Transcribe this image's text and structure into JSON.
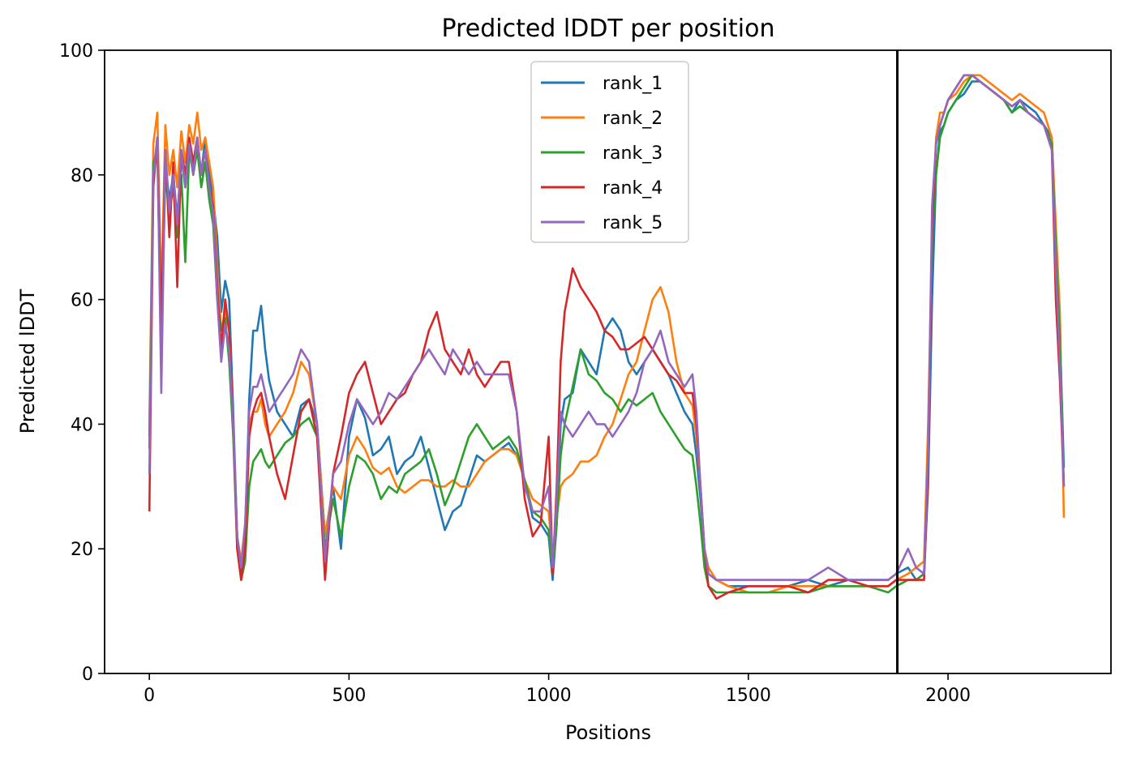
{
  "chart_data": {
    "type": "line",
    "title": "Predicted lDDT per position",
    "xlabel": "Positions",
    "ylabel": "Predicted lDDT",
    "xlim": [
      -112,
      2408
    ],
    "ylim": [
      0,
      100
    ],
    "xticks": [
      0,
      500,
      1000,
      1500,
      2000
    ],
    "yticks": [
      0,
      20,
      40,
      60,
      80,
      100
    ],
    "grid": false,
    "legend_position": "top-center",
    "vline_x": 1873,
    "series": [
      {
        "name": "rank_1",
        "color": "#1f77b4",
        "x": [
          0,
          10,
          20,
          30,
          40,
          50,
          60,
          70,
          80,
          90,
          100,
          110,
          120,
          130,
          140,
          150,
          160,
          170,
          180,
          190,
          200,
          210,
          220,
          230,
          240,
          250,
          260,
          270,
          280,
          290,
          300,
          320,
          340,
          360,
          380,
          400,
          420,
          440,
          460,
          480,
          500,
          520,
          540,
          560,
          580,
          600,
          620,
          640,
          660,
          680,
          700,
          720,
          740,
          760,
          780,
          800,
          820,
          840,
          860,
          880,
          900,
          920,
          940,
          960,
          980,
          1000,
          1010,
          1020,
          1030,
          1040,
          1060,
          1080,
          1100,
          1120,
          1140,
          1160,
          1180,
          1200,
          1220,
          1240,
          1260,
          1280,
          1300,
          1320,
          1340,
          1360,
          1370,
          1380,
          1390,
          1400,
          1420,
          1450,
          1500,
          1550,
          1600,
          1650,
          1700,
          1750,
          1800,
          1850,
          1870,
          1900,
          1920,
          1940,
          1950,
          1960,
          1970,
          1980,
          1990,
          2000,
          2020,
          2040,
          2060,
          2080,
          2100,
          2120,
          2140,
          2160,
          2180,
          2200,
          2220,
          2240,
          2260,
          2270,
          2280,
          2290
        ],
        "y": [
          38,
          80,
          84,
          55,
          82,
          76,
          80,
          73,
          83,
          78,
          85,
          81,
          84,
          80,
          86,
          80,
          76,
          70,
          58,
          63,
          60,
          42,
          22,
          16,
          22,
          44,
          55,
          55,
          59,
          52,
          47,
          42,
          40,
          38,
          43,
          44,
          40,
          22,
          30,
          20,
          38,
          44,
          41,
          35,
          36,
          38,
          32,
          34,
          35,
          38,
          33,
          28,
          23,
          26,
          27,
          31,
          35,
          34,
          35,
          36,
          37,
          35,
          31,
          25,
          24,
          22,
          15,
          24,
          40,
          44,
          45,
          52,
          50,
          48,
          55,
          57,
          55,
          50,
          48,
          50,
          52,
          50,
          48,
          45,
          42,
          40,
          35,
          28,
          20,
          16,
          15,
          14,
          14,
          14,
          14,
          15,
          14,
          15,
          15,
          15,
          16,
          17,
          15,
          16,
          30,
          60,
          80,
          87,
          88,
          90,
          92,
          93,
          95,
          95,
          94,
          93,
          92,
          90,
          92,
          91,
          90,
          88,
          86,
          70,
          55,
          33
        ]
      },
      {
        "name": "rank_2",
        "color": "#ff7f0e",
        "x": [
          0,
          10,
          20,
          30,
          40,
          50,
          60,
          70,
          80,
          90,
          100,
          110,
          120,
          130,
          140,
          150,
          160,
          170,
          180,
          190,
          200,
          210,
          220,
          230,
          240,
          250,
          260,
          270,
          280,
          290,
          300,
          320,
          340,
          360,
          380,
          400,
          420,
          440,
          460,
          480,
          500,
          520,
          540,
          560,
          580,
          600,
          620,
          640,
          660,
          680,
          700,
          720,
          740,
          760,
          780,
          800,
          820,
          840,
          860,
          880,
          900,
          920,
          940,
          960,
          980,
          1000,
          1010,
          1020,
          1030,
          1040,
          1060,
          1080,
          1100,
          1120,
          1140,
          1160,
          1180,
          1200,
          1220,
          1240,
          1260,
          1280,
          1300,
          1320,
          1340,
          1360,
          1370,
          1380,
          1390,
          1400,
          1420,
          1450,
          1500,
          1550,
          1600,
          1650,
          1700,
          1750,
          1800,
          1850,
          1870,
          1900,
          1920,
          1940,
          1950,
          1960,
          1970,
          1980,
          1990,
          2000,
          2020,
          2040,
          2060,
          2080,
          2100,
          2120,
          2140,
          2160,
          2180,
          2200,
          2220,
          2240,
          2260,
          2270,
          2280,
          2290
        ],
        "y": [
          40,
          85,
          90,
          60,
          88,
          80,
          84,
          78,
          87,
          82,
          88,
          85,
          90,
          84,
          86,
          82,
          78,
          65,
          55,
          58,
          55,
          40,
          22,
          18,
          24,
          40,
          42,
          42,
          44,
          40,
          38,
          40,
          42,
          45,
          50,
          48,
          40,
          22,
          30,
          28,
          35,
          38,
          36,
          33,
          32,
          33,
          30,
          29,
          30,
          31,
          31,
          30,
          30,
          31,
          30,
          30,
          32,
          34,
          35,
          36,
          36,
          35,
          31,
          28,
          27,
          26,
          18,
          25,
          30,
          31,
          32,
          34,
          34,
          35,
          38,
          40,
          44,
          48,
          50,
          55,
          60,
          62,
          58,
          50,
          45,
          43,
          38,
          30,
          20,
          17,
          15,
          14,
          13,
          13,
          14,
          14,
          14,
          14,
          14,
          14,
          15,
          16,
          17,
          18,
          40,
          70,
          86,
          90,
          90,
          92,
          93,
          95,
          96,
          96,
          95,
          94,
          93,
          92,
          93,
          92,
          91,
          90,
          86,
          72,
          58,
          25
        ]
      },
      {
        "name": "rank_3",
        "color": "#2ca02c",
        "x": [
          0,
          10,
          20,
          30,
          40,
          50,
          60,
          70,
          80,
          90,
          100,
          110,
          120,
          130,
          140,
          150,
          160,
          170,
          180,
          190,
          200,
          210,
          220,
          230,
          240,
          250,
          260,
          270,
          280,
          290,
          300,
          320,
          340,
          360,
          380,
          400,
          420,
          440,
          460,
          480,
          500,
          520,
          540,
          560,
          580,
          600,
          620,
          640,
          660,
          680,
          700,
          720,
          740,
          760,
          780,
          800,
          820,
          840,
          860,
          880,
          900,
          920,
          940,
          960,
          980,
          1000,
          1010,
          1020,
          1030,
          1040,
          1060,
          1080,
          1100,
          1120,
          1140,
          1160,
          1180,
          1200,
          1220,
          1240,
          1260,
          1280,
          1300,
          1320,
          1340,
          1360,
          1370,
          1380,
          1390,
          1400,
          1420,
          1450,
          1500,
          1550,
          1600,
          1650,
          1700,
          1750,
          1800,
          1850,
          1870,
          1900,
          1920,
          1940,
          1950,
          1960,
          1970,
          1980,
          1990,
          2000,
          2020,
          2040,
          2060,
          2080,
          2100,
          2120,
          2140,
          2160,
          2180,
          2200,
          2220,
          2240,
          2260,
          2270,
          2280,
          2290
        ],
        "y": [
          36,
          82,
          84,
          52,
          80,
          74,
          78,
          70,
          80,
          66,
          84,
          80,
          84,
          78,
          82,
          76,
          72,
          60,
          55,
          57,
          50,
          38,
          20,
          15,
          18,
          30,
          34,
          35,
          36,
          34,
          33,
          35,
          37,
          38,
          40,
          41,
          38,
          20,
          28,
          22,
          30,
          35,
          34,
          32,
          28,
          30,
          29,
          32,
          33,
          34,
          36,
          32,
          27,
          30,
          34,
          38,
          40,
          38,
          36,
          37,
          38,
          36,
          31,
          26,
          25,
          23,
          16,
          24,
          35,
          40,
          46,
          52,
          48,
          47,
          45,
          44,
          42,
          44,
          43,
          44,
          45,
          42,
          40,
          38,
          36,
          35,
          30,
          24,
          17,
          14,
          13,
          13,
          13,
          13,
          13,
          13,
          14,
          14,
          14,
          13,
          14,
          15,
          15,
          16,
          35,
          70,
          80,
          86,
          88,
          90,
          92,
          94,
          96,
          95,
          94,
          93,
          92,
          90,
          91,
          90,
          89,
          88,
          85,
          68,
          54,
          30
        ]
      },
      {
        "name": "rank_4",
        "color": "#d62728",
        "x": [
          0,
          10,
          20,
          30,
          40,
          50,
          60,
          70,
          80,
          90,
          100,
          110,
          120,
          130,
          140,
          150,
          160,
          170,
          180,
          190,
          200,
          210,
          220,
          230,
          240,
          250,
          260,
          270,
          280,
          290,
          300,
          320,
          340,
          360,
          380,
          400,
          420,
          440,
          460,
          480,
          500,
          520,
          540,
          560,
          580,
          600,
          620,
          640,
          660,
          680,
          700,
          720,
          740,
          760,
          780,
          800,
          820,
          840,
          860,
          880,
          900,
          920,
          940,
          960,
          980,
          1000,
          1010,
          1020,
          1030,
          1040,
          1060,
          1080,
          1100,
          1120,
          1140,
          1160,
          1180,
          1200,
          1220,
          1240,
          1260,
          1280,
          1300,
          1320,
          1340,
          1360,
          1370,
          1380,
          1390,
          1400,
          1420,
          1450,
          1500,
          1550,
          1600,
          1650,
          1700,
          1750,
          1800,
          1850,
          1870,
          1900,
          1920,
          1940,
          1950,
          1960,
          1970,
          1980,
          1990,
          2000,
          2020,
          2040,
          2060,
          2080,
          2100,
          2120,
          2140,
          2160,
          2180,
          2200,
          2220,
          2240,
          2260,
          2270,
          2280,
          2290
        ],
        "y": [
          26,
          78,
          86,
          56,
          84,
          70,
          82,
          62,
          84,
          80,
          86,
          82,
          86,
          80,
          84,
          78,
          75,
          62,
          52,
          60,
          55,
          40,
          20,
          15,
          20,
          38,
          42,
          44,
          45,
          42,
          38,
          32,
          28,
          35,
          42,
          44,
          38,
          15,
          32,
          38,
          45,
          48,
          50,
          45,
          40,
          42,
          44,
          45,
          48,
          50,
          55,
          58,
          52,
          50,
          48,
          52,
          48,
          46,
          48,
          50,
          50,
          42,
          28,
          22,
          24,
          38,
          16,
          30,
          50,
          58,
          65,
          62,
          60,
          58,
          55,
          54,
          52,
          52,
          53,
          54,
          52,
          50,
          48,
          47,
          45,
          45,
          40,
          30,
          20,
          14,
          12,
          13,
          14,
          14,
          14,
          13,
          15,
          15,
          14,
          14,
          15,
          15,
          15,
          15,
          32,
          72,
          85,
          88,
          90,
          92,
          94,
          96,
          96,
          95,
          94,
          93,
          92,
          91,
          92,
          90,
          89,
          88,
          84,
          60,
          47,
          30
        ]
      },
      {
        "name": "rank_5",
        "color": "#9467bd",
        "x": [
          0,
          10,
          20,
          30,
          40,
          50,
          60,
          70,
          80,
          90,
          100,
          110,
          120,
          130,
          140,
          150,
          160,
          170,
          180,
          190,
          200,
          210,
          220,
          230,
          240,
          250,
          260,
          270,
          280,
          290,
          300,
          320,
          340,
          360,
          380,
          400,
          420,
          440,
          460,
          480,
          500,
          520,
          540,
          560,
          580,
          600,
          620,
          640,
          660,
          680,
          700,
          720,
          740,
          760,
          780,
          800,
          820,
          840,
          860,
          880,
          900,
          920,
          940,
          960,
          980,
          1000,
          1010,
          1020,
          1030,
          1040,
          1060,
          1080,
          1100,
          1120,
          1140,
          1160,
          1180,
          1200,
          1220,
          1240,
          1260,
          1280,
          1300,
          1320,
          1340,
          1360,
          1370,
          1380,
          1390,
          1400,
          1420,
          1450,
          1500,
          1550,
          1600,
          1650,
          1700,
          1750,
          1800,
          1850,
          1870,
          1900,
          1920,
          1940,
          1950,
          1960,
          1970,
          1980,
          1990,
          2000,
          2020,
          2040,
          2060,
          2080,
          2100,
          2120,
          2140,
          2160,
          2180,
          2200,
          2220,
          2240,
          2260,
          2270,
          2280,
          2290
        ],
        "y": [
          32,
          80,
          86,
          45,
          84,
          74,
          80,
          72,
          84,
          78,
          85,
          80,
          86,
          80,
          84,
          78,
          74,
          60,
          50,
          56,
          52,
          40,
          22,
          17,
          24,
          42,
          46,
          46,
          48,
          45,
          42,
          44,
          46,
          48,
          52,
          50,
          40,
          18,
          32,
          34,
          40,
          44,
          42,
          40,
          42,
          45,
          44,
          46,
          48,
          50,
          52,
          50,
          48,
          52,
          50,
          48,
          50,
          48,
          48,
          48,
          48,
          42,
          30,
          26,
          26,
          30,
          17,
          28,
          42,
          40,
          38,
          40,
          42,
          40,
          40,
          38,
          40,
          42,
          45,
          50,
          52,
          55,
          50,
          48,
          46,
          48,
          42,
          30,
          20,
          16,
          15,
          15,
          15,
          15,
          15,
          15,
          17,
          15,
          15,
          15,
          16,
          20,
          17,
          16,
          35,
          75,
          85,
          88,
          90,
          92,
          94,
          96,
          96,
          95,
          94,
          93,
          92,
          91,
          92,
          90,
          89,
          88,
          84,
          65,
          50,
          30
        ]
      }
    ]
  }
}
